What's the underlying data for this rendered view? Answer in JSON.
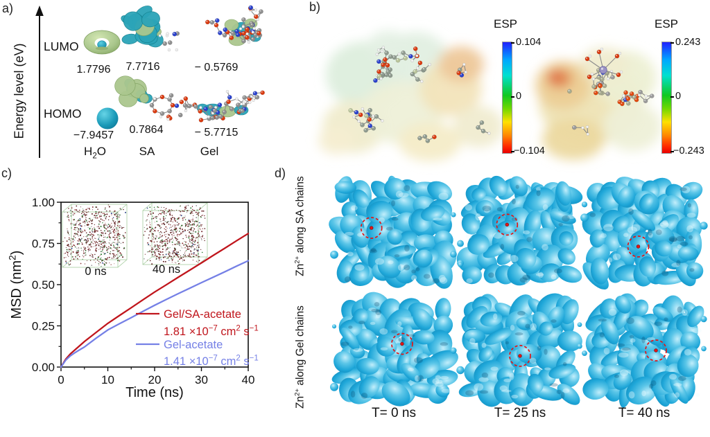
{
  "figure": {
    "panel_a": {
      "label": "a)",
      "axis_label": "Energy level (eV)",
      "lumo_label": "LUMO",
      "homo_label": "HOMO",
      "values": {
        "h2o_lumo": "1.7796",
        "sa_lumo": "7.7716",
        "gel_lumo": "− 0.5769",
        "h2o_homo": "−7.9457",
        "sa_homo": "0.7864",
        "gel_homo": "− 5.7715"
      },
      "names": {
        "h2o_parts": [
          "H",
          "2",
          "O"
        ],
        "sa": "SA",
        "gel": "Gel"
      }
    },
    "panel_b": {
      "label": "b)",
      "colorbar_left": {
        "title": "ESP",
        "max": "0.104",
        "mid": "0",
        "min": "−0.104"
      },
      "colorbar_right": {
        "title": "ESP",
        "max": "0.243",
        "mid": "0",
        "min": "−0.243"
      }
    },
    "panel_c": {
      "label": "c)",
      "inset_labels": [
        "0 ns",
        "40 ns"
      ]
    },
    "panel_d": {
      "label": "d)",
      "row_labels": [
        {
          "base": "Zn",
          "sup": "2+",
          "rest": " along SA chains"
        },
        {
          "base": "Zn",
          "sup": "2+",
          "rest": " along Gel chains"
        }
      ],
      "col_labels": [
        "T= 0 ns",
        "T= 25 ns",
        "T= 40 ns"
      ],
      "zn_markers": [
        [
          0.31,
          0.45
        ],
        [
          0.39,
          0.42
        ],
        [
          0.45,
          0.62
        ],
        [
          0.57,
          0.44
        ],
        [
          0.5,
          0.55
        ],
        [
          0.6,
          0.5
        ]
      ],
      "surface_color": "#1b9fd2",
      "marker_color": "#e31515"
    }
  },
  "chart_data": {
    "type": "line",
    "xlabel": "Time (ns)",
    "ylabel_parts": [
      "MSD (nm",
      "2",
      ")"
    ],
    "xlim": [
      0,
      40
    ],
    "ylim": [
      0,
      1.0
    ],
    "xticks": [
      0,
      10,
      20,
      30,
      40
    ],
    "xminor": [
      5,
      15,
      25,
      35
    ],
    "yticks": [
      0,
      0.25,
      0.5,
      0.75,
      1.0
    ],
    "ytick_labels": [
      "0.00",
      "0.25",
      "0.50",
      "0.75",
      "1.00"
    ],
    "yminor": [
      0.125,
      0.375,
      0.625,
      0.875
    ],
    "grid": false,
    "legend_position": "right-center",
    "x": [
      0,
      1,
      2,
      3,
      4,
      5,
      7.5,
      10,
      12.5,
      15,
      17.5,
      20,
      22.5,
      25,
      27.5,
      30,
      32.5,
      35,
      37.5,
      40
    ],
    "series": [
      {
        "name": "Gel/SA-acetate",
        "color": "#c0151c",
        "diff_parts": [
          "1.81 ×10",
          "−7",
          " cm",
          "2",
          " s",
          "−1"
        ],
        "values": [
          0,
          0.048,
          0.08,
          0.105,
          0.13,
          0.155,
          0.21,
          0.265,
          0.313,
          0.36,
          0.408,
          0.455,
          0.499,
          0.544,
          0.588,
          0.632,
          0.677,
          0.721,
          0.766,
          0.81
        ]
      },
      {
        "name": "Gel-acetate",
        "color": "#7580e6",
        "diff_parts": [
          "1.41 ×10",
          "−7",
          " cm",
          "2",
          " s",
          "−1"
        ],
        "values": [
          0,
          0.042,
          0.068,
          0.088,
          0.105,
          0.122,
          0.175,
          0.225,
          0.263,
          0.3,
          0.338,
          0.375,
          0.41,
          0.445,
          0.478,
          0.512,
          0.545,
          0.578,
          0.612,
          0.645
        ]
      }
    ]
  }
}
